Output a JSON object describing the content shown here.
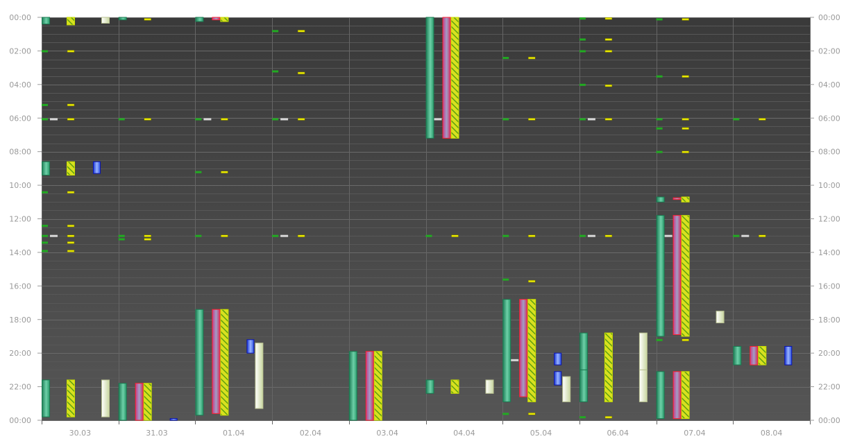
{
  "chart_data": {
    "type": "bar",
    "subtype": "floating-range-timeline",
    "title": "",
    "xlabel": "",
    "ylabel": "",
    "x_categories": [
      "30.03",
      "31.03",
      "01.04",
      "02.04",
      "03.04",
      "04.04",
      "05.04",
      "06.04",
      "07.04",
      "08.04"
    ],
    "y_range_hours": [
      0,
      24
    ],
    "y_direction": "downward",
    "y_tick_labels": [
      "00:00",
      "02:00",
      "04:00",
      "06:00",
      "08:00",
      "10:00",
      "12:00",
      "14:00",
      "16:00",
      "18:00",
      "20:00",
      "22:00",
      "00:00"
    ],
    "y_tick_labels_right": [
      "00:00",
      "02:00",
      "04:00",
      "06:00",
      "08:00",
      "10:00",
      "12:00",
      "14:00",
      "16:00",
      "18:00",
      "20:00",
      "22:00",
      "00:00"
    ],
    "grid": true,
    "legend": "none",
    "colors": {
      "plot_bg": "#4a4a4a",
      "plot_bg_top": "#3a3a3a",
      "grid_major": "#6a6a6a",
      "grid_minor": "#575757",
      "teal": "#2f9a70",
      "red": "#e03a4a",
      "hatch": "#9ccf1a",
      "blue": "#2a50e0",
      "cream": "#e9efc9",
      "dash_green": "#22aa22",
      "dash_yellow": "#e7e700"
    },
    "series": [
      {
        "style": "teal",
        "intervals": [
          {
            "day": 0,
            "start": 0.0,
            "end": 0.4
          },
          {
            "day": 0,
            "start": 8.6,
            "end": 9.4
          },
          {
            "day": 0,
            "start": 21.6,
            "end": 23.8
          },
          {
            "day": 1,
            "start": 0.0,
            "end": 0.15
          },
          {
            "day": 1,
            "start": 21.8,
            "end": 24.0
          },
          {
            "day": 2,
            "start": 0.0,
            "end": 0.25
          },
          {
            "day": 2,
            "start": 17.4,
            "end": 23.7
          },
          {
            "day": 4,
            "start": 19.9,
            "end": 24.0
          },
          {
            "day": 5,
            "start": 0.0,
            "end": 7.2
          },
          {
            "day": 5,
            "start": 21.6,
            "end": 22.4
          },
          {
            "day": 6,
            "start": 16.8,
            "end": 22.9
          },
          {
            "day": 7,
            "start": 18.8,
            "end": 21.0
          },
          {
            "day": 7,
            "start": 21.0,
            "end": 22.9
          },
          {
            "day": 8,
            "start": 10.7,
            "end": 11.0
          },
          {
            "day": 8,
            "start": 11.8,
            "end": 19.0
          },
          {
            "day": 8,
            "start": 21.1,
            "end": 23.9
          },
          {
            "day": 9,
            "start": 19.6,
            "end": 20.7
          }
        ]
      },
      {
        "style": "red",
        "intervals": [
          {
            "day": 1,
            "start": 21.8,
            "end": 24.0
          },
          {
            "day": 2,
            "start": 0.0,
            "end": 0.15
          },
          {
            "day": 2,
            "start": 17.4,
            "end": 23.6
          },
          {
            "day": 4,
            "start": 19.9,
            "end": 24.0
          },
          {
            "day": 5,
            "start": 0.0,
            "end": 7.2
          },
          {
            "day": 6,
            "start": 16.8,
            "end": 22.6
          },
          {
            "day": 8,
            "start": 10.75,
            "end": 10.85
          },
          {
            "day": 8,
            "start": 11.8,
            "end": 18.9
          },
          {
            "day": 8,
            "start": 21.1,
            "end": 23.9
          },
          {
            "day": 9,
            "start": 19.6,
            "end": 20.7
          }
        ]
      },
      {
        "style": "hatch",
        "intervals": [
          {
            "day": 0,
            "start": 0.0,
            "end": 0.45
          },
          {
            "day": 0,
            "start": 8.6,
            "end": 9.4
          },
          {
            "day": 0,
            "start": 21.6,
            "end": 23.8
          },
          {
            "day": 1,
            "start": 21.8,
            "end": 24.0
          },
          {
            "day": 2,
            "start": 0.0,
            "end": 0.25
          },
          {
            "day": 2,
            "start": 17.4,
            "end": 23.7
          },
          {
            "day": 4,
            "start": 19.9,
            "end": 24.0
          },
          {
            "day": 5,
            "start": 0.0,
            "end": 7.2
          },
          {
            "day": 5,
            "start": 21.6,
            "end": 22.4
          },
          {
            "day": 6,
            "start": 16.8,
            "end": 22.9
          },
          {
            "day": 7,
            "start": 18.8,
            "end": 21.0
          },
          {
            "day": 7,
            "start": 21.0,
            "end": 22.9
          },
          {
            "day": 8,
            "start": 10.7,
            "end": 11.0
          },
          {
            "day": 8,
            "start": 11.8,
            "end": 19.0
          },
          {
            "day": 8,
            "start": 21.1,
            "end": 23.9
          },
          {
            "day": 9,
            "start": 19.6,
            "end": 20.7
          }
        ]
      },
      {
        "style": "blue",
        "intervals": [
          {
            "day": 0,
            "start": 8.6,
            "end": 9.3
          },
          {
            "day": 1,
            "start": 23.9,
            "end": 24.0
          },
          {
            "day": 2,
            "start": 19.2,
            "end": 20.0
          },
          {
            "day": 6,
            "start": 20.0,
            "end": 20.7
          },
          {
            "day": 6,
            "start": 21.1,
            "end": 21.9
          },
          {
            "day": 9,
            "start": 19.6,
            "end": 20.7
          }
        ]
      },
      {
        "style": "cream",
        "intervals": [
          {
            "day": 0,
            "start": 0.0,
            "end": 0.35
          },
          {
            "day": 0,
            "start": 21.6,
            "end": 23.8
          },
          {
            "day": 2,
            "start": 19.4,
            "end": 23.3
          },
          {
            "day": 5,
            "start": 21.6,
            "end": 22.4
          },
          {
            "day": 6,
            "start": 21.4,
            "end": 22.9
          },
          {
            "day": 7,
            "start": 18.8,
            "end": 21.0
          },
          {
            "day": 7,
            "start": 21.0,
            "end": 22.9
          },
          {
            "day": 8,
            "start": 17.5,
            "end": 18.2
          }
        ]
      },
      {
        "style": "dash_green",
        "times": [
          {
            "day": 0,
            "t": [
              2.0,
              5.2,
              6.05,
              10.4,
              12.4,
              13.0,
              13.4,
              13.9
            ]
          },
          {
            "day": 1,
            "t": [
              6.05,
              13.0,
              13.2
            ]
          },
          {
            "day": 2,
            "t": [
              6.05,
              9.2,
              13.0
            ]
          },
          {
            "day": 3,
            "t": [
              0.8,
              3.2,
              6.05,
              13.0
            ]
          },
          {
            "day": 5,
            "t": [
              13.0
            ]
          },
          {
            "day": 6,
            "t": [
              2.4,
              6.05,
              13.0,
              15.6,
              23.6
            ]
          },
          {
            "day": 7,
            "t": [
              0.05,
              1.3,
              2.0,
              4.0,
              6.05,
              13.0,
              23.8
            ]
          },
          {
            "day": 8,
            "t": [
              0.1,
              3.5,
              6.05,
              6.6,
              8.0,
              19.2
            ]
          },
          {
            "day": 9,
            "t": [
              6.05,
              13.0
            ]
          }
        ]
      },
      {
        "style": "dash_yellow",
        "times": [
          {
            "day": 0,
            "t": [
              2.0,
              5.2,
              6.05,
              10.4,
              12.4,
              13.0,
              13.4,
              13.9
            ]
          },
          {
            "day": 1,
            "t": [
              0.1,
              6.05,
              13.0,
              13.2
            ]
          },
          {
            "day": 2,
            "t": [
              6.05,
              9.2,
              13.0
            ]
          },
          {
            "day": 3,
            "t": [
              0.8,
              3.3,
              6.05,
              13.0
            ]
          },
          {
            "day": 5,
            "t": [
              13.0
            ]
          },
          {
            "day": 6,
            "t": [
              2.4,
              6.05,
              13.0,
              15.7,
              23.6
            ]
          },
          {
            "day": 7,
            "t": [
              0.05,
              1.3,
              2.0,
              4.05,
              6.05,
              13.0,
              23.8
            ]
          },
          {
            "day": 8,
            "t": [
              0.1,
              3.5,
              6.05,
              6.6,
              8.0,
              19.2
            ]
          },
          {
            "day": 9,
            "t": [
              6.05,
              13.0
            ]
          }
        ]
      },
      {
        "style": "dash_white",
        "times": [
          {
            "day": 0,
            "t": [
              6.05,
              13.0
            ]
          },
          {
            "day": 2,
            "t": [
              6.05
            ]
          },
          {
            "day": 3,
            "t": [
              6.05,
              13.0
            ]
          },
          {
            "day": 5,
            "t": [
              6.05
            ]
          },
          {
            "day": 6,
            "t": [
              20.4
            ]
          },
          {
            "day": 7,
            "t": [
              6.05,
              13.0
            ]
          },
          {
            "day": 8,
            "t": [
              13.0
            ]
          },
          {
            "day": 9,
            "t": [
              13.0
            ]
          }
        ]
      }
    ]
  }
}
